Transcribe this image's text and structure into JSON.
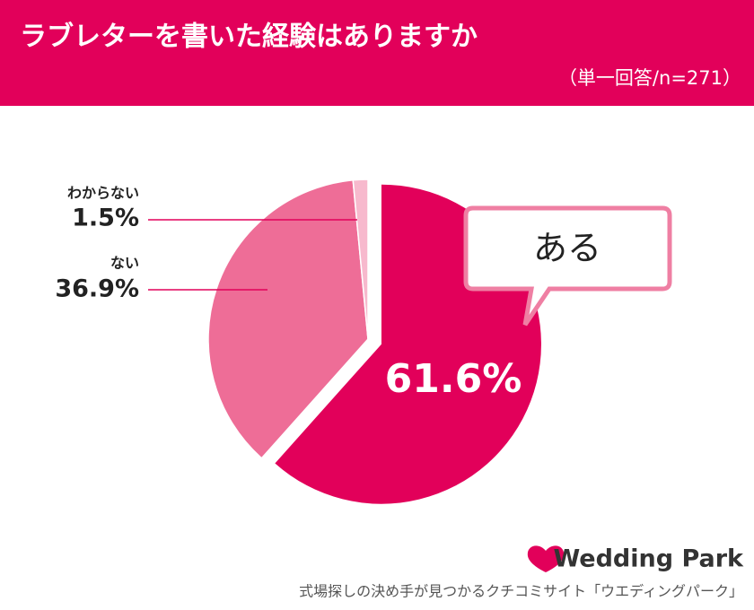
{
  "chart_data": {
    "type": "pie",
    "title": "ラブレターを書いた経験はありますか",
    "subtitle": "（単一回答/n=271）",
    "categories": [
      "ある",
      "ない",
      "わからない"
    ],
    "values": [
      61.6,
      36.9,
      1.5
    ],
    "value_labels": [
      "61.6%",
      "36.9%",
      "1.5%"
    ],
    "colors": [
      "#e2005a",
      "#ee6d97",
      "#f7b9cd"
    ]
  },
  "footer": {
    "brand": "Wedding Park",
    "tagline": "式場探しの決め手が見つかるクチコミサイト「ウエディングパーク」"
  }
}
